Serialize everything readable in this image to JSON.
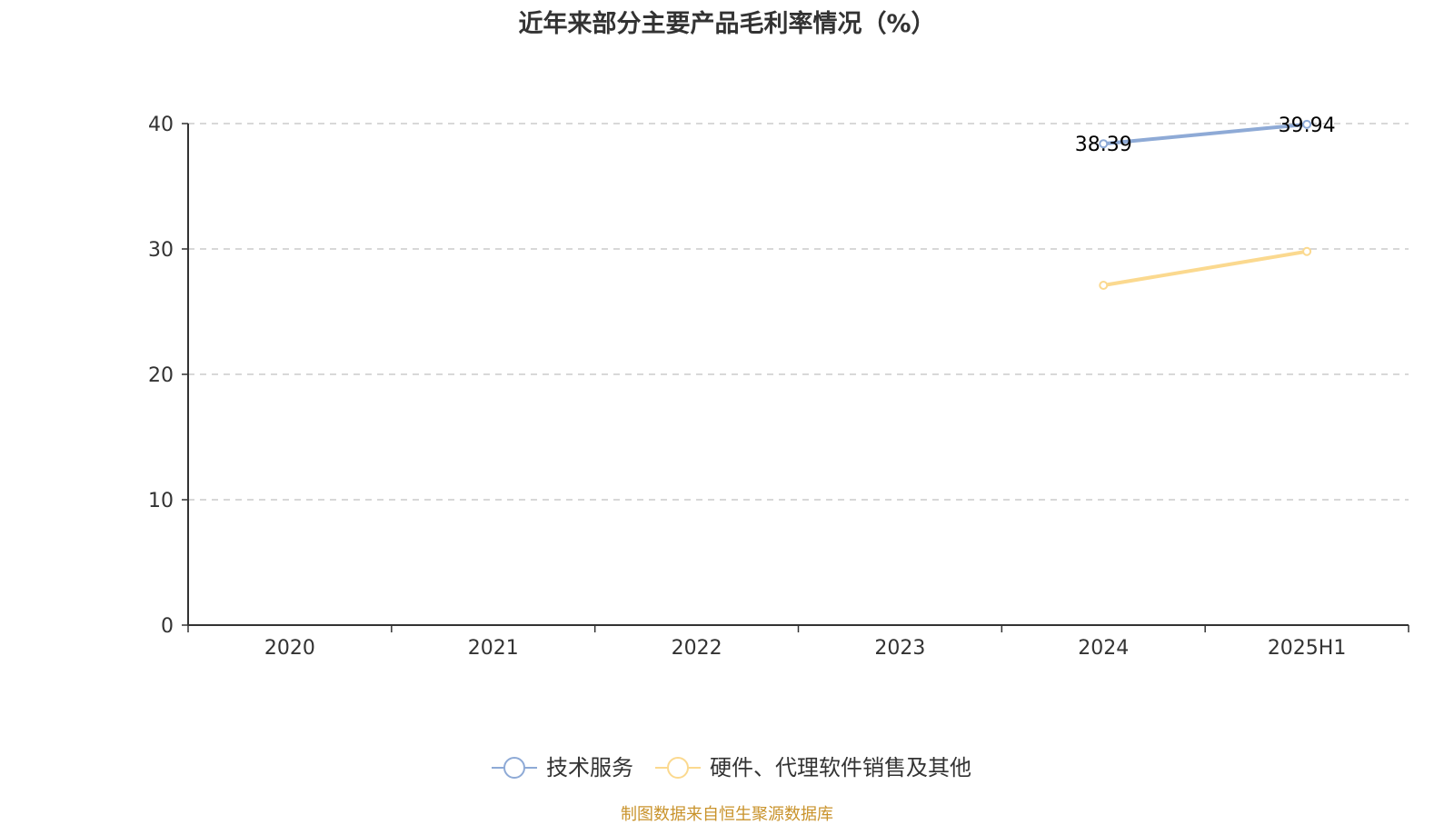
{
  "title": "近年来部分主要产品毛利率情况（%）",
  "source": "制图数据来自恒生聚源数据库",
  "chart_data": {
    "type": "line",
    "title": "近年来部分主要产品毛利率情况（%）",
    "categories": [
      "2020",
      "2021",
      "2022",
      "2023",
      "2024",
      "2025H1"
    ],
    "ylim": [
      0,
      40
    ],
    "yticks": [
      0,
      10,
      20,
      30,
      40
    ],
    "grid": true,
    "legend_position": "bottom",
    "series": [
      {
        "name": "技术服务",
        "color": "#8eaad6",
        "values": [
          null,
          null,
          null,
          null,
          38.39,
          39.94
        ],
        "show_labels": true
      },
      {
        "name": "硬件、代理软件销售及其他",
        "color": "#fbd98f",
        "values": [
          null,
          null,
          null,
          null,
          27.1,
          29.8
        ],
        "show_labels": false
      }
    ]
  }
}
